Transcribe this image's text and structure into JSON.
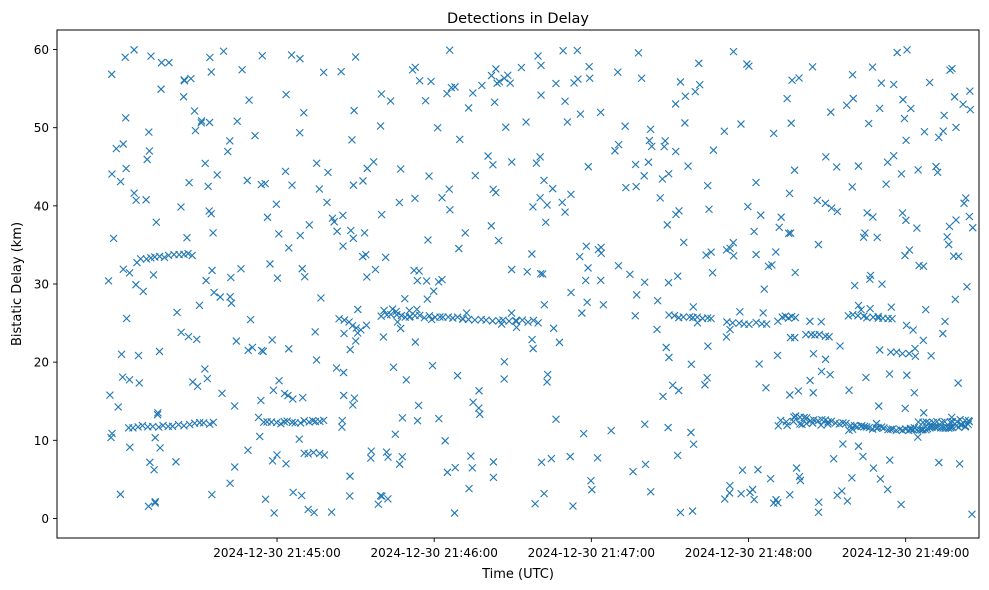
{
  "chart_data": {
    "type": "scatter",
    "title": "Detections in Delay",
    "xlabel": "Time (UTC)",
    "ylabel": "Bistatic Delay (km)",
    "marker": "x",
    "color": "#1f77b4",
    "grid": false,
    "legend": "none",
    "x_unit": "seconds after 2024-12-30 21:44:00 UTC",
    "xlim": [
      -24,
      328
    ],
    "ylim": [
      -2.5,
      62.5
    ],
    "x_ticks": [
      {
        "value": 60,
        "label": "2024-12-30 21:45:00"
      },
      {
        "value": 120,
        "label": "2024-12-30 21:46:00"
      },
      {
        "value": 180,
        "label": "2024-12-30 21:47:00"
      },
      {
        "value": 240,
        "label": "2024-12-30 21:48:00"
      },
      {
        "value": 300,
        "label": "2024-12-30 21:49:00"
      }
    ],
    "y_ticks": [
      0,
      10,
      20,
      30,
      40,
      50,
      60
    ],
    "tracks": [
      {
        "from": [
          3,
          11.6
        ],
        "to": [
          36,
          12.2
        ],
        "count": 18
      },
      {
        "from": [
          8,
          33.3
        ],
        "to": [
          28,
          33.8
        ],
        "count": 12
      },
      {
        "from": [
          55,
          12.2
        ],
        "to": [
          78,
          12.4
        ],
        "count": 16
      },
      {
        "from": [
          70,
          8.4
        ],
        "to": [
          78,
          8.2
        ],
        "count": 5
      },
      {
        "from": [
          84,
          25.6
        ],
        "to": [
          92,
          24.2
        ],
        "count": 6
      },
      {
        "from": [
          100,
          26.0
        ],
        "to": [
          131,
          25.6
        ],
        "count": 18
      },
      {
        "from": [
          131,
          25.4
        ],
        "to": [
          160,
          25.2
        ],
        "count": 14
      },
      {
        "from": [
          210,
          25.9
        ],
        "to": [
          226,
          25.5
        ],
        "count": 10
      },
      {
        "from": [
          232,
          25.2
        ],
        "to": [
          247,
          24.8
        ],
        "count": 8
      },
      {
        "from": [
          253,
          25.9
        ],
        "to": [
          258,
          25.7
        ],
        "count": 5
      },
      {
        "from": [
          262,
          23.6
        ],
        "to": [
          271,
          23.4
        ],
        "count": 6
      },
      {
        "from": [
          278,
          26.0
        ],
        "to": [
          295,
          25.6
        ],
        "count": 10
      },
      {
        "from": [
          294,
          21.4
        ],
        "to": [
          304,
          20.8
        ],
        "count": 5
      },
      {
        "from": [
          257,
          13.0
        ],
        "to": [
          283,
          11.8
        ],
        "count": 20
      },
      {
        "from": [
          283,
          11.7
        ],
        "to": [
          302,
          11.3
        ],
        "count": 18
      },
      {
        "from": [
          302,
          11.4
        ],
        "to": [
          324,
          11.9
        ],
        "count": 28
      },
      {
        "from": [
          305,
          12.3
        ],
        "to": [
          324,
          12.6
        ],
        "count": 14
      },
      {
        "from": [
          252,
          12.4
        ],
        "to": [
          270,
          12.0
        ],
        "count": 8
      }
    ],
    "noise_points": {
      "count": 620,
      "x_range": [
        -6,
        326
      ],
      "y_range": [
        0.5,
        60
      ]
    }
  }
}
